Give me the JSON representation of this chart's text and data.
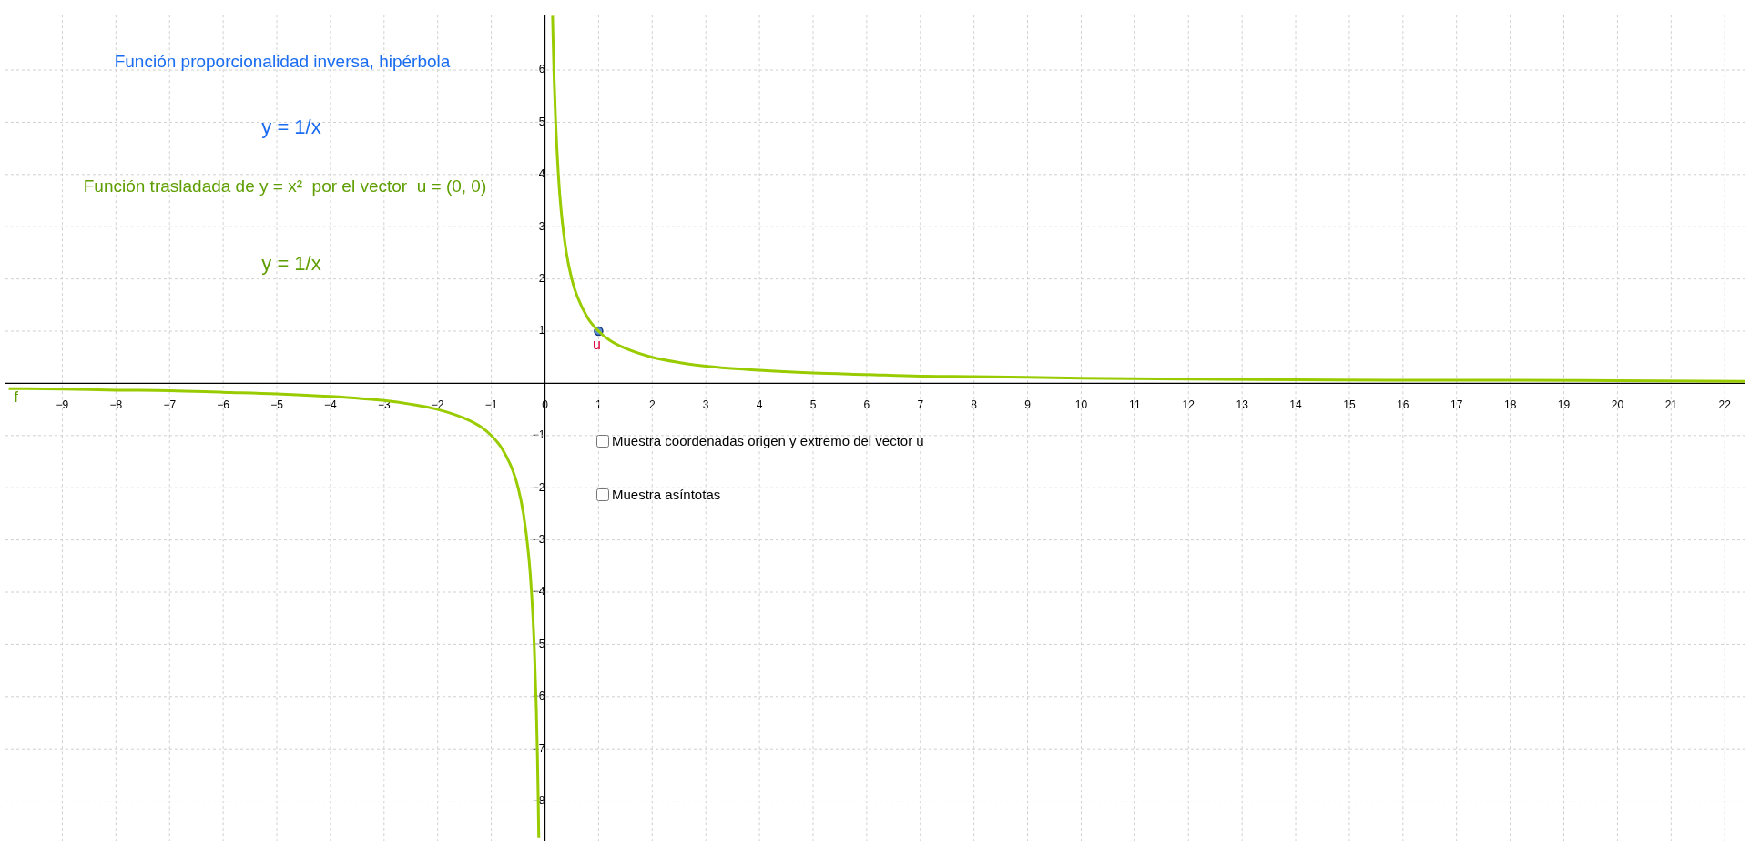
{
  "chart_data": {
    "type": "line",
    "title": "Función proporcionalidad inversa, hipérbola",
    "annotations": [
      "y = 1/x",
      "Función trasladada de y = x²  por el vector  u = (0, 0)",
      "y = 1/x",
      "Muestra coordenadas origen y extremo del vector u",
      "Muestra asíntotas"
    ],
    "series": [
      {
        "name": "f",
        "type": "line",
        "marker": "none",
        "color": "#99cc00",
        "x": [
          -10,
          -9,
          -8,
          -7,
          -6,
          -5,
          -4,
          -3,
          -2.5,
          -2,
          -1.5,
          -1.2,
          -1,
          -0.8,
          -0.6,
          -0.5,
          -0.4,
          -0.3,
          -0.25,
          -0.2,
          -0.16,
          -0.14,
          -0.125,
          -0.115,
          0,
          0.142,
          0.15,
          0.17,
          0.2,
          0.25,
          0.3,
          0.4,
          0.5,
          0.6,
          0.8,
          1,
          1.2,
          1.5,
          2,
          2.5,
          3,
          4,
          5,
          6,
          7,
          8,
          10,
          12,
          14,
          16,
          18,
          20,
          22.37
        ],
        "values": [
          -0.1,
          -0.11,
          -0.13,
          -0.14,
          -0.17,
          -0.2,
          -0.25,
          -0.33,
          -0.4,
          -0.5,
          -0.67,
          -0.83,
          -1,
          -1.25,
          -1.67,
          -2,
          -2.5,
          -3.33,
          -4,
          -5,
          -6.25,
          -7.14,
          -8,
          -8.7,
          null,
          7.04,
          6.67,
          5.88,
          5,
          4,
          3.33,
          2.5,
          2,
          1.67,
          1.25,
          1,
          0.83,
          0.67,
          0.5,
          0.4,
          0.33,
          0.25,
          0.2,
          0.17,
          0.14,
          0.13,
          0.1,
          0.08,
          0.07,
          0.06,
          0.06,
          0.05,
          0.04
        ]
      },
      {
        "name": "u",
        "type": "scatter",
        "marker": "circle",
        "color": "#5b8fd8",
        "x": [
          1
        ],
        "values": [
          1
        ]
      }
    ],
    "xlim": [
      -10.06,
      22.37
    ],
    "ylim": [
      -8.77,
      7.06
    ],
    "xticks": [
      {
        "value": -9,
        "label": "−9"
      },
      {
        "value": -8,
        "label": "−8"
      },
      {
        "value": -7,
        "label": "−7"
      },
      {
        "value": -6,
        "label": "−6"
      },
      {
        "value": -5,
        "label": "−5"
      },
      {
        "value": -4,
        "label": "−4"
      },
      {
        "value": -3,
        "label": "−3"
      },
      {
        "value": -2,
        "label": "−2"
      },
      {
        "value": -1,
        "label": "−1"
      },
      0,
      1,
      2,
      3,
      4,
      5,
      6,
      7,
      8,
      9,
      10,
      11,
      12,
      13,
      14,
      15,
      16,
      17,
      18,
      19,
      20,
      21,
      22
    ],
    "yticks": [
      {
        "value": -8,
        "label": "−8"
      },
      {
        "value": -7,
        "label": "−7"
      },
      {
        "value": -6,
        "label": "−6"
      },
      {
        "value": -5,
        "label": "−5"
      },
      {
        "value": -4,
        "label": "−4"
      },
      {
        "value": -3,
        "label": "−3"
      },
      {
        "value": -2,
        "label": "−2"
      },
      {
        "value": -1,
        "label": "−1"
      },
      {
        "value": 0,
        "label": null
      },
      1,
      2,
      3,
      4,
      5,
      6
    ],
    "grid": true,
    "legend": false
  }
}
